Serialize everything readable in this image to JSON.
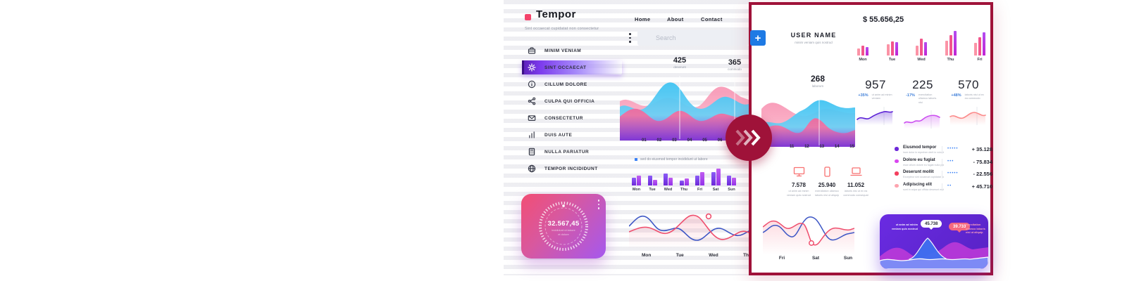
{
  "colors": {
    "accent_crimson": "#9f1239",
    "accent_pink": "#f4436b",
    "accent_blue": "#3b82f6",
    "purple": "#6d28d9",
    "wave_blue": "#45c6f1",
    "wave_pink": "#f4719f"
  },
  "dashboard": {
    "logo": {
      "name": "Tempor",
      "tagline": "Sint occaecat cupidatat non consectetur"
    },
    "nav": [
      "Home",
      "About",
      "Contact"
    ],
    "search_placeholder": "Search",
    "menu": [
      {
        "icon": "briefcase-icon",
        "label": "MINIM VENIAM",
        "active": false
      },
      {
        "icon": "gear-icon",
        "label": "SINT OCCAECAT",
        "active": true
      },
      {
        "icon": "info-icon",
        "label": "CILLUM DOLORE",
        "active": false
      },
      {
        "icon": "share-icon",
        "label": "CULPA QUI OFFICIA",
        "active": false
      },
      {
        "icon": "mail-icon",
        "label": "CONSECTETUR",
        "active": false
      },
      {
        "icon": "bar-chart-icon",
        "label": "DUIS AUTE",
        "active": false
      },
      {
        "icon": "calculator-icon",
        "label": "NULLA PARIATUR",
        "active": false
      },
      {
        "icon": "globe-icon",
        "label": "TEMPOR INCIDIDUNT",
        "active": false
      }
    ],
    "main_chart": {
      "type": "area",
      "callouts": [
        {
          "value": "425",
          "label": "deserunt"
        },
        {
          "value": "365",
          "label": "commodo"
        }
      ],
      "x_ticks": [
        "01",
        "02",
        "03",
        "04",
        "05",
        "06",
        "07"
      ],
      "legend": "sed do eiusmod tempor incididunt ut labore"
    },
    "weekly_bars": {
      "type": "bar",
      "categories": [
        "Mon",
        "Tue",
        "Wed",
        "Thu",
        "Fri",
        "Sat",
        "Sun"
      ],
      "values": [
        [
          11,
          14
        ],
        [
          14,
          8
        ],
        [
          17,
          11
        ],
        [
          7,
          10
        ],
        [
          14,
          19
        ],
        [
          19,
          24
        ],
        [
          14,
          11
        ]
      ],
      "colors": [
        [
          "#8b5cf6",
          "#6d28d9"
        ],
        [
          "#c05cf0",
          "#9333ea"
        ]
      ]
    },
    "gauge": {
      "value": "32.567,45",
      "caption_line1": "incididunt ut labore",
      "caption_line2": "et dolore"
    },
    "line_chart": {
      "type": "line",
      "x_ticks": [
        "Mon",
        "Tue",
        "Wed",
        "Thu"
      ]
    }
  },
  "panel": {
    "user": {
      "name": "USER NAME",
      "subtitle": "minim veniam quis nostrud"
    },
    "balance": "$ 55.656,25",
    "mini_bars": {
      "type": "bar",
      "categories": [
        "Mon",
        "Tue",
        "Wed",
        "Thu",
        "Fri"
      ],
      "values": [
        [
          10,
          14,
          12
        ],
        [
          16,
          20,
          19
        ],
        [
          14,
          24,
          19
        ],
        [
          21,
          29,
          35
        ],
        [
          18,
          26,
          33
        ]
      ],
      "colors": [
        [
          "#fb93a6",
          "#fb93a6"
        ],
        [
          "#f2558c",
          "#f2558c"
        ],
        [
          "#b44bf0",
          "#c026d3"
        ]
      ]
    },
    "area_chart": {
      "type": "area",
      "callout": {
        "value": "268",
        "label": "laborum"
      },
      "x_ticks": [
        "11",
        "12",
        "13",
        "14",
        "15"
      ]
    },
    "stats": [
      {
        "value": "957",
        "delta": "+35%",
        "desc": "ut anim ad minim veniam",
        "color": "#5b21d6"
      },
      {
        "value": "225",
        "delta": "-17%",
        "desc": "exercitation ullamco laboris nisi",
        "color": "#cb4df0"
      },
      {
        "value": "570",
        "delta": "+48%",
        "desc": "laboris nisi ut ex ea commodo",
        "color": "#fb8a8a"
      }
    ],
    "devices": [
      {
        "icon": "monitor-icon",
        "value": "7.578",
        "caption": "ut anim ad minim veniam quis nostrud"
      },
      {
        "icon": "smartphone-icon",
        "value": "25.940",
        "caption": "exercitation ullamco laboris nisi ut aliquip"
      },
      {
        "icon": "laptop-icon",
        "value": "11.052",
        "caption": "laboris nisi ut ex ea commodo consequat"
      }
    ],
    "legend_rows": [
      {
        "dot": "#6d28d9",
        "title": "Eiusmod tempor",
        "desc": "irure dolor in reprehen derit in voluptate velit",
        "dots": "•••••",
        "value": "+ 35.128"
      },
      {
        "dot": "#d946ef",
        "title": "Dolore eu fugiat",
        "desc": "esse cillum dolore eu fugiat nulla pariatur",
        "dots": "•••",
        "value": "- 75.834"
      },
      {
        "dot": "#f43f5e",
        "title": "Deserunt mollit",
        "desc": "Excepteur sint occaecat cupidatat non proident",
        "dots": "•••••",
        "value": "- 22.556"
      },
      {
        "dot": "#fda4af",
        "title": "Adipiscing elit",
        "desc": "sunt in culpa qui officia deserunt mollit",
        "dots": "••",
        "value": "+ 45.710"
      }
    ],
    "line_chart": {
      "type": "line",
      "x_ticks": [
        "Fri",
        "Sat",
        "Sun"
      ]
    },
    "promo_card": {
      "label_left": "ut anim ad minim veniam quis nostrud",
      "tooltip_white": "45.738",
      "tooltip_pink": "39.733",
      "label_right": "exercitation ullamco laboris nisi ut aliquip"
    }
  }
}
